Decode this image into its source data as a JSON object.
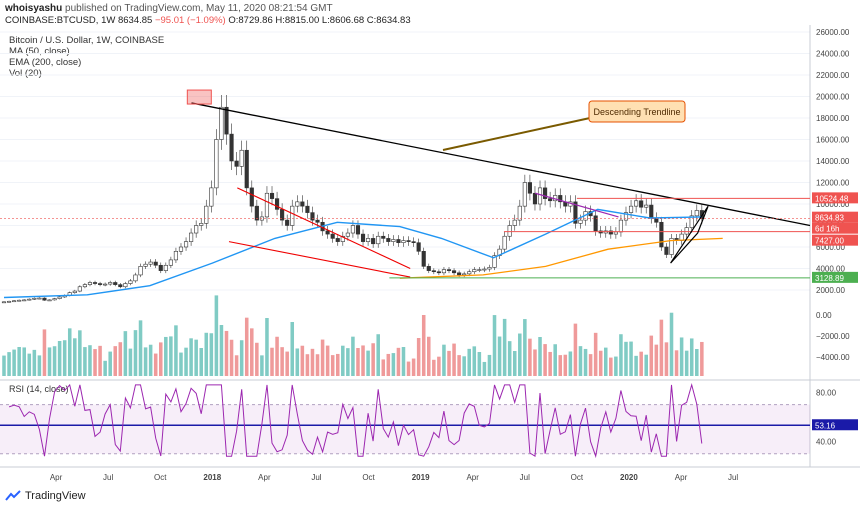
{
  "header": {
    "publisher": "whoisyashu",
    "published_text": "published on TradingView.com, May 11, 2020 08:21:54 GMT",
    "symbol": "COINBASE:BTCUSD, 1W",
    "last": "8634.85",
    "change": "−95.01 (−1.09%)",
    "open": "O:8729.86",
    "high": "H:8815.00",
    "low": "L:8606.68",
    "close": "C:8634.83"
  },
  "legend": {
    "title": "Bitcoin / U.S. Dollar, 1W, COINBASE",
    "ma": "MA (50, close)",
    "ema": "EMA (200, close)",
    "vol": "Vol (20)",
    "rsi": "RSI (14, close)"
  },
  "annotation": {
    "text": "Descending Trendline"
  },
  "price_labels": {
    "resistance": "10524.48",
    "last": "8634.83",
    "countdown": "6d 16h",
    "support": "7427.00",
    "floor": "3128.89",
    "rsi_last": "53.16"
  },
  "price_axis": [
    "26000.00",
    "24000.00",
    "22000.00",
    "20000.00",
    "18000.00",
    "16000.00",
    "14000.00",
    "12000.00",
    "10000.00",
    "8000.00",
    "6000.00",
    "4000.00",
    "2000.00"
  ],
  "volume_axis": [
    "0.00",
    "−2000.00",
    "−4000.00"
  ],
  "rsi_axis": [
    "80.00",
    "40.00"
  ],
  "time_axis": [
    "Apr",
    "Jul",
    "Oct",
    "2018",
    "Apr",
    "Jul",
    "Oct",
    "2019",
    "Apr",
    "Jul",
    "Oct",
    "2020",
    "Apr",
    "Jul"
  ],
  "branding": {
    "name": "TradingView"
  },
  "colors": {
    "up": "#26a69a",
    "down": "#ef5350",
    "ma": "#2196f3",
    "ema": "#ff9800",
    "rsi": "#9c27b0",
    "trend": "#000000",
    "support": "#4caf50",
    "annotation": "#ffe0b2"
  },
  "chart_data": {
    "type": "candlestick",
    "title": "Bitcoin / U.S. Dollar, 1W, COINBASE",
    "x_range": [
      "2017-01",
      "2020-09"
    ],
    "y_range": [
      0,
      26000
    ],
    "weekly_close_approx": [
      900,
      950,
      1000,
      1050,
      1080,
      1150,
      1230,
      1250,
      1050,
      1080,
      1200,
      1350,
      1500,
      1750,
      1900,
      2300,
      2500,
      2700,
      2600,
      2500,
      2550,
      2700,
      2500,
      2300,
      2600,
      2850,
      3400,
      4200,
      4400,
      4600,
      4300,
      3800,
      4300,
      4800,
      5600,
      6000,
      6500,
      7300,
      8000,
      8200,
      9800,
      11500,
      16000,
      19000,
      16500,
      14000,
      13500,
      15000,
      11500,
      9800,
      8500,
      8800,
      11000,
      10500,
      9500,
      8500,
      8000,
      9800,
      10200,
      9800,
      9200,
      8500,
      8300,
      7500,
      7200,
      6800,
      6500,
      7000,
      7300,
      8000,
      7200,
      6500,
      6800,
      6300,
      7000,
      6800,
      6500,
      6700,
      6400,
      6600,
      6500,
      6400,
      5600,
      4200,
      3800,
      3700,
      3600,
      3900,
      3800,
      3600,
      3400,
      3500,
      3700,
      3900,
      3900,
      3950,
      4100,
      5200,
      5800,
      7000,
      8000,
      8500,
      9800,
      12000,
      11000,
      10000,
      11500,
      10500,
      10300,
      10800,
      10200,
      9800,
      10200,
      8200,
      8500,
      9300,
      8900,
      7500,
      7300,
      7500,
      7200,
      7400,
      8500,
      9200,
      9800,
      10300,
      9700,
      9900,
      8700,
      8300,
      6000,
      5300,
      6800,
      6600,
      7200,
      7800,
      8900,
      9400,
      8634
    ],
    "ma_50_points": [
      [
        2017.0,
        1300
      ],
      [
        2017.4,
        1550
      ],
      [
        2017.7,
        2400
      ],
      [
        2018.0,
        4500
      ],
      [
        2018.3,
        6800
      ],
      [
        2018.6,
        8300
      ],
      [
        2018.9,
        7900
      ],
      [
        2019.1,
        6800
      ],
      [
        2019.35,
        5000
      ],
      [
        2019.6,
        7200
      ],
      [
        2019.85,
        9500
      ],
      [
        2020.1,
        8700
      ],
      [
        2020.35,
        8800
      ]
    ],
    "ema_200_points": [
      [
        2018.9,
        3100
      ],
      [
        2019.3,
        3400
      ],
      [
        2019.6,
        4200
      ],
      [
        2019.9,
        5800
      ],
      [
        2020.2,
        6600
      ],
      [
        2020.45,
        6800
      ]
    ],
    "rsi_range": [
      20,
      90
    ],
    "levels": {
      "resistance": 10524.48,
      "support": 7427.0,
      "floor": 3128.89
    }
  }
}
